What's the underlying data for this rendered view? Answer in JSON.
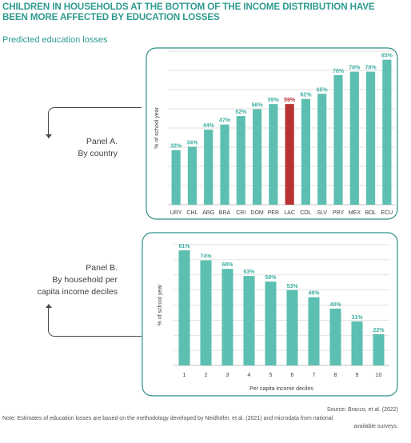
{
  "title": "CHILDREN IN HOUSEHOLDS AT THE BOTTOM OF THE INCOME DISTRIBUTION HAVE BEEN MORE AFFECTED BY EDUCATION LOSSES",
  "subtitle": "Predicted education losses",
  "panel_a": {
    "line1": "Panel A.",
    "line2": "By country"
  },
  "panel_b": {
    "line1": "Panel B.",
    "line2": "By household per",
    "line3": "capita income deciles"
  },
  "source": "Source: Bracco, et al. (2022)",
  "note_line1": "Note: Estimates of education losses are based on the methodology developed by Neidhöfer, et al. (2021) and microdata from national",
  "note_line2": "available surveys.",
  "colors": {
    "bar": "#5cbfb1",
    "highlight": "#b83234",
    "label": "#3fb0a2",
    "frame": "#2e8f86"
  },
  "chart_data": [
    {
      "type": "bar",
      "title": "Panel A. By country",
      "ylabel": "% of school year",
      "xlabel": "",
      "categories": [
        "URY",
        "CHL",
        "ARG",
        "BRA",
        "CRI",
        "DOM",
        "PER",
        "LAC",
        "COL",
        "SLV",
        "PRY",
        "MEX",
        "BOL",
        "ECU"
      ],
      "values": [
        32,
        34,
        44,
        47,
        52,
        56,
        59,
        59,
        62,
        65,
        76,
        78,
        78,
        85
      ],
      "value_labels": [
        "32%",
        "34%",
        "44%",
        "47%",
        "52%",
        "56%",
        "59%",
        "59%",
        "62%",
        "65%",
        "76%",
        "78%",
        "78%",
        "85%"
      ],
      "highlight": "LAC",
      "ylim": [
        0,
        90
      ],
      "grid": true
    },
    {
      "type": "bar",
      "title": "Panel B. By household per capita income deciles",
      "ylabel": "% of school year",
      "xlabel": "Per capita income deciles",
      "categories": [
        "1",
        "2",
        "3",
        "4",
        "5",
        "6",
        "7",
        "8",
        "9",
        "10"
      ],
      "values": [
        81,
        74,
        68,
        63,
        59,
        53,
        48,
        40,
        31,
        22
      ],
      "value_labels": [
        "81%",
        "74%",
        "68%",
        "63%",
        "59%",
        "53%",
        "48%",
        "40%",
        "31%",
        "22%"
      ],
      "ylim": [
        0,
        85
      ],
      "grid": true
    }
  ]
}
